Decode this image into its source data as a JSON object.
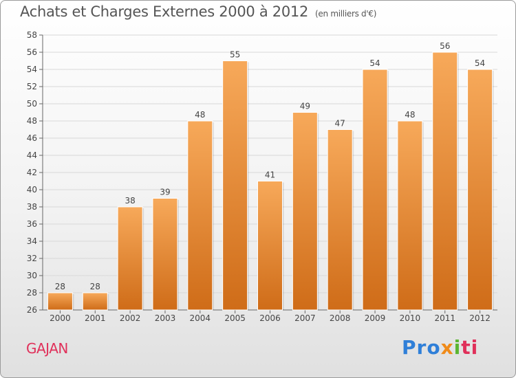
{
  "header": {
    "title": "Achats et Charges Externes 2000 à 2012",
    "subtitle": "(en milliers d'€)"
  },
  "footer": {
    "commune": "GAJAN",
    "logo": [
      "Pro",
      "x",
      "i",
      "ti"
    ]
  },
  "colors": {
    "bar_top": "#f7a95a",
    "bar_bottom": "#cf6c18",
    "grid": "#d8d8d8"
  },
  "chart_data": {
    "type": "bar",
    "title": "Achats et Charges Externes 2000 à 2012",
    "subtitle": "(en milliers d'€)",
    "xlabel": "",
    "ylabel": "",
    "categories": [
      "2000",
      "2001",
      "2002",
      "2003",
      "2004",
      "2005",
      "2006",
      "2007",
      "2008",
      "2009",
      "2010",
      "2011",
      "2012"
    ],
    "values": [
      28,
      28,
      38,
      39,
      48,
      55,
      41,
      49,
      47,
      54,
      48,
      56,
      54
    ],
    "ylim": [
      26,
      58
    ],
    "yticks": [
      26,
      28,
      30,
      32,
      34,
      36,
      38,
      40,
      42,
      44,
      46,
      48,
      50,
      52,
      54,
      56,
      58
    ],
    "grid": true,
    "data_labels": true
  }
}
